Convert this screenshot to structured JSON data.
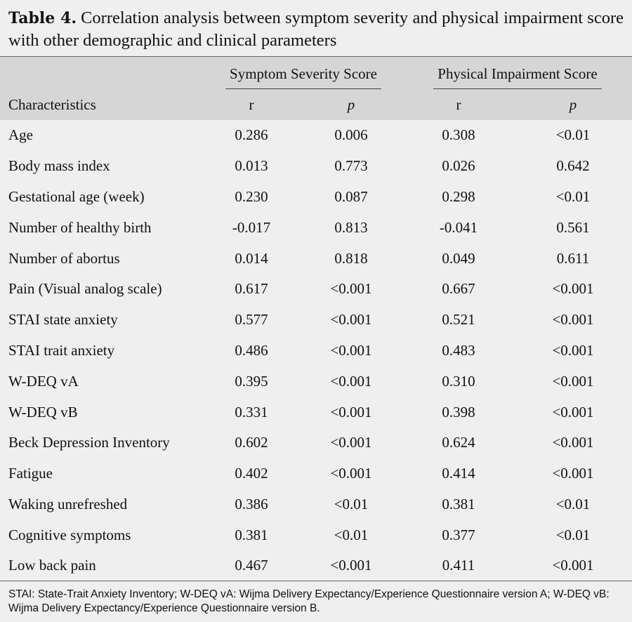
{
  "title": {
    "label": "Table 4.",
    "text": "Correlation analysis between symptom severity and physical impairment score with other demographic and clinical parameters"
  },
  "table": {
    "group_headers": [
      "Symptom Severity Score",
      "Physical Impairment Score"
    ],
    "columns": [
      "Characteristics",
      "r",
      "p",
      "r",
      "p"
    ],
    "rows": [
      [
        "Age",
        "0.286",
        "0.006",
        "0.308",
        "<0.01"
      ],
      [
        "Body mass index",
        "0.013",
        "0.773",
        "0.026",
        "0.642"
      ],
      [
        "Gestational age (week)",
        "0.230",
        "0.087",
        "0.298",
        "<0.01"
      ],
      [
        "Number of healthy birth",
        "-0.017",
        "0.813",
        "-0.041",
        "0.561"
      ],
      [
        "Number of abortus",
        "0.014",
        "0.818",
        "0.049",
        "0.611"
      ],
      [
        "Pain (Visual analog scale)",
        "0.617",
        "<0.001",
        "0.667",
        "<0.001"
      ],
      [
        "STAI state anxiety",
        "0.577",
        "<0.001",
        "0.521",
        "<0.001"
      ],
      [
        "STAI trait anxiety",
        "0.486",
        "<0.001",
        "0.483",
        "<0.001"
      ],
      [
        "W-DEQ vA",
        "0.395",
        "<0.001",
        "0.310",
        "<0.001"
      ],
      [
        "W-DEQ vB",
        "0.331",
        "<0.001",
        "0.398",
        "<0.001"
      ],
      [
        "Beck Depression Inventory",
        "0.602",
        "<0.001",
        "0.624",
        "<0.001"
      ],
      [
        "Fatigue",
        "0.402",
        "<0.001",
        "0.414",
        "<0.001"
      ],
      [
        "Waking unrefreshed",
        "0.386",
        "<0.01",
        "0.381",
        "<0.01"
      ],
      [
        "Cognitive symptoms",
        "0.381",
        "<0.01",
        "0.377",
        "<0.01"
      ],
      [
        "Low back pain",
        "0.467",
        "<0.001",
        "0.411",
        "<0.001"
      ]
    ]
  },
  "footnote": "STAI: State-Trait Anxiety Inventory; W-DEQ vA: Wijma Delivery Expectancy/Experience Questionnaire version A; W-DEQ vB: Wijma Delivery Expectancy/Experience Questionnaire version B."
}
